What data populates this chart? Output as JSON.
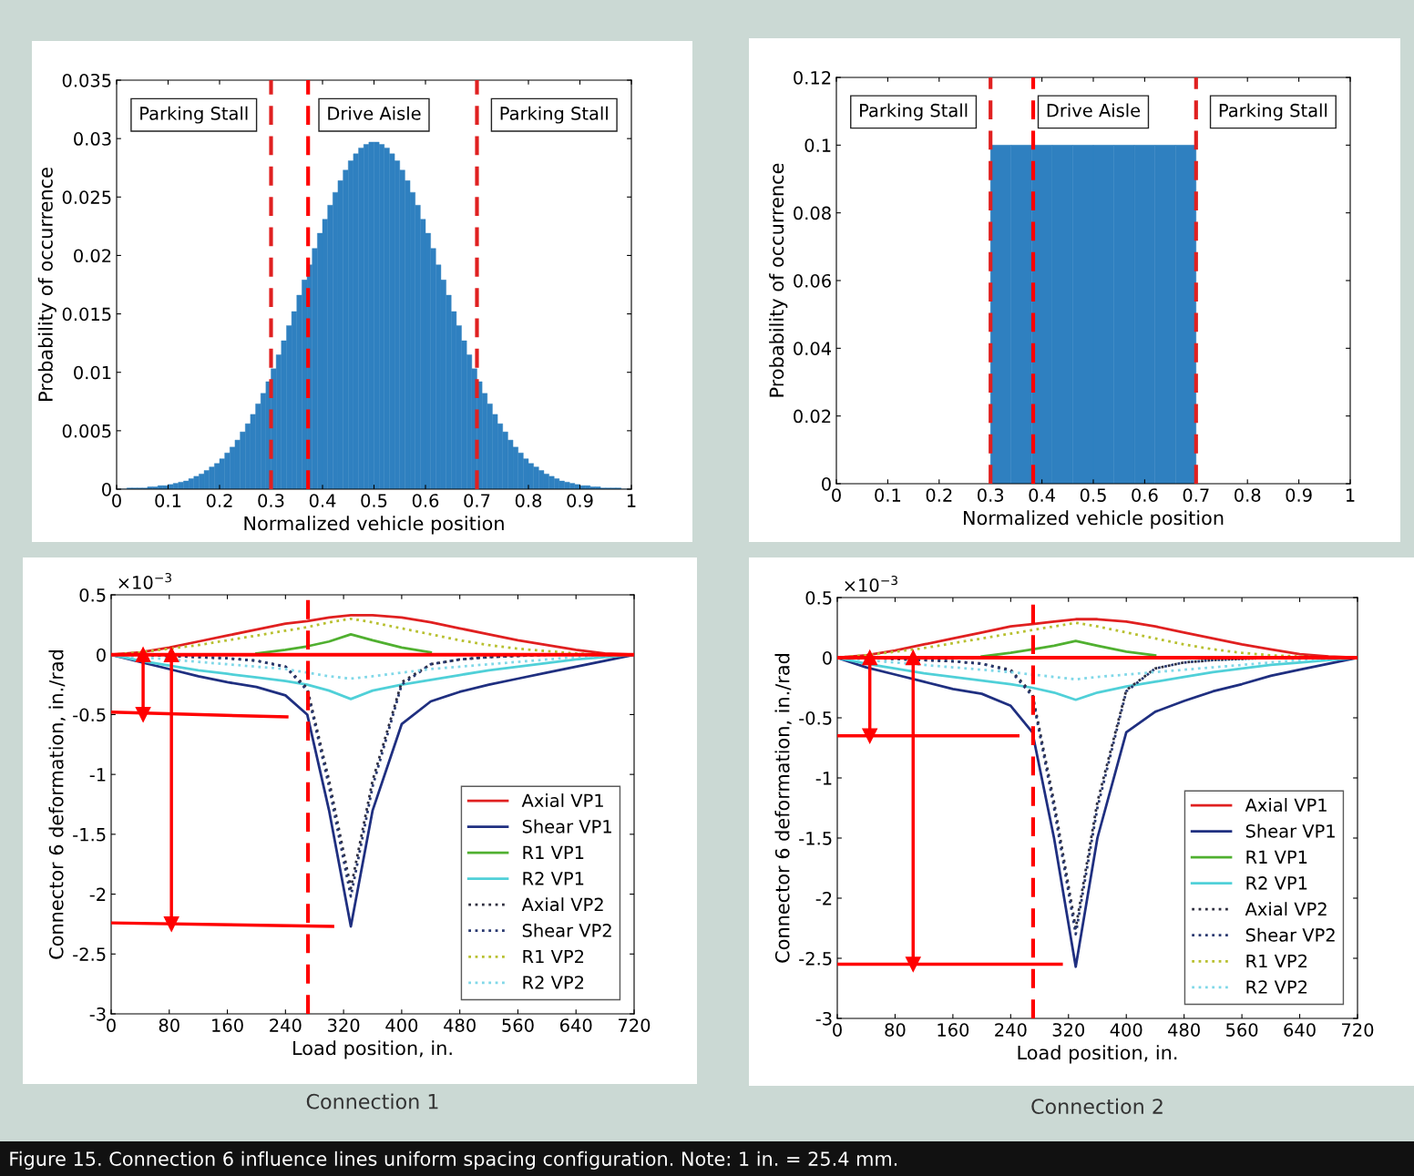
{
  "chart_data": [
    {
      "type": "histogram",
      "xlabel": "Normalized vehicle position",
      "ylabel": "Probability of occurrence",
      "color": "#2f80c0",
      "bins": [
        0,
        0.01,
        0.02,
        0.03,
        0.04,
        0.05,
        0.06,
        0.07,
        0.08,
        0.09,
        0.1,
        0.11,
        0.12,
        0.13,
        0.14,
        0.15,
        0.16,
        0.17,
        0.18,
        0.19,
        0.2,
        0.21,
        0.22,
        0.23,
        0.24,
        0.25,
        0.26,
        0.27,
        0.28,
        0.29,
        0.3,
        0.31,
        0.32,
        0.33,
        0.34,
        0.35,
        0.36,
        0.37,
        0.38,
        0.39,
        0.4,
        0.41,
        0.42,
        0.43,
        0.44,
        0.45,
        0.46,
        0.47,
        0.48,
        0.49,
        0.5,
        0.51,
        0.52,
        0.53,
        0.54,
        0.55,
        0.56,
        0.57,
        0.58,
        0.59,
        0.6,
        0.61,
        0.62,
        0.63,
        0.64,
        0.65,
        0.66,
        0.67,
        0.68,
        0.69,
        0.7,
        0.71,
        0.72,
        0.73,
        0.74,
        0.75,
        0.76,
        0.77,
        0.78,
        0.79,
        0.8,
        0.81,
        0.82,
        0.83,
        0.84,
        0.85,
        0.86,
        0.87,
        0.88,
        0.89,
        0.9,
        0.91,
        0.92,
        0.93,
        0.94,
        0.95,
        0.96,
        0.97,
        0.98,
        0.99,
        1
      ],
      "values": [
        0,
        0,
        0.0001,
        0.0001,
        0.0001,
        0.0001,
        0.0002,
        0.0002,
        0.0003,
        0.0003,
        0.0004,
        0.0005,
        0.0006,
        0.0007,
        0.0009,
        0.0011,
        0.0013,
        0.0016,
        0.0019,
        0.0022,
        0.0026,
        0.0031,
        0.0036,
        0.0042,
        0.0049,
        0.0056,
        0.0064,
        0.0073,
        0.0082,
        0.0092,
        0.0103,
        0.0115,
        0.0127,
        0.014,
        0.0152,
        0.0166,
        0.0179,
        0.0192,
        0.0206,
        0.0219,
        0.0231,
        0.0243,
        0.0254,
        0.0264,
        0.0273,
        0.0281,
        0.0287,
        0.0292,
        0.0295,
        0.0297,
        0.0297,
        0.0295,
        0.0292,
        0.0287,
        0.0281,
        0.0273,
        0.0264,
        0.0254,
        0.0243,
        0.0231,
        0.0219,
        0.0206,
        0.0192,
        0.0179,
        0.0166,
        0.0152,
        0.014,
        0.0127,
        0.0115,
        0.0103,
        0.0092,
        0.0082,
        0.0073,
        0.0064,
        0.0056,
        0.0049,
        0.0042,
        0.0036,
        0.0031,
        0.0026,
        0.0022,
        0.0019,
        0.0016,
        0.0013,
        0.0011,
        0.0009,
        0.0007,
        0.0006,
        0.0005,
        0.0004,
        0.0003,
        0.0003,
        0.0002,
        0.0002,
        0.0001,
        0.0001,
        0.0001,
        0.0001,
        0,
        0
      ],
      "xlim": [
        0,
        1
      ],
      "xticks": [
        0,
        0.1,
        0.2,
        0.3,
        0.4,
        0.5,
        0.6,
        0.7,
        0.8,
        0.9,
        1
      ],
      "ylim": [
        0,
        0.035
      ],
      "yticks": [
        0,
        0.005,
        0.01,
        0.015,
        0.02,
        0.025,
        0.03,
        0.035
      ],
      "ref_lines": [
        {
          "axis": "x",
          "value": 0.3,
          "color": "#e02020",
          "line_style": "dashed"
        },
        {
          "axis": "x",
          "value": 0.7,
          "color": "#e02020",
          "line_style": "dashed"
        },
        {
          "axis": "x",
          "value": 0.372,
          "color": "#ff0000",
          "line_style": "dashed"
        }
      ],
      "annotations": [
        "Parking Stall",
        "Drive Aisle",
        "Parking Stall"
      ]
    },
    {
      "type": "histogram",
      "xlabel": "Normalized vehicle position",
      "ylabel": "Probability of occurrence",
      "color": "#2f80c0",
      "bins": [
        0.3,
        0.34,
        0.38,
        0.42,
        0.46,
        0.5,
        0.54,
        0.58,
        0.62,
        0.66,
        0.7
      ],
      "values": [
        0.1,
        0.1,
        0.1,
        0.1,
        0.1,
        0.1,
        0.1,
        0.1,
        0.1,
        0.1
      ],
      "xlim": [
        0,
        1
      ],
      "xticks": [
        0,
        0.1,
        0.2,
        0.3,
        0.4,
        0.5,
        0.6,
        0.7,
        0.8,
        0.9,
        1
      ],
      "ylim": [
        0,
        0.12
      ],
      "yticks": [
        0,
        0.02,
        0.04,
        0.06,
        0.08,
        0.1,
        0.12
      ],
      "ref_lines": [
        {
          "axis": "x",
          "value": 0.3,
          "color": "#e02020",
          "line_style": "dashed"
        },
        {
          "axis": "x",
          "value": 0.7,
          "color": "#e02020",
          "line_style": "dashed"
        },
        {
          "axis": "x",
          "value": 0.383,
          "color": "#ff0000",
          "line_style": "dashed"
        }
      ],
      "annotations": [
        "Parking Stall",
        "Drive Aisle",
        "Parking Stall"
      ]
    },
    {
      "type": "line",
      "xlabel": "Load position, in.",
      "ylabel": "Connector 6 deformation, in./rad",
      "legend": "bottom right",
      "x": [
        0,
        40,
        80,
        120,
        160,
        200,
        240,
        270,
        300,
        330,
        360,
        400,
        440,
        480,
        520,
        560,
        600,
        640,
        680,
        720
      ],
      "series": [
        {
          "name": "Axial VP1",
          "color": "#e02020",
          "line_style": "solid",
          "values": [
            0,
            0.02,
            0.06,
            0.11,
            0.16,
            0.21,
            0.26,
            0.28,
            0.31,
            0.33,
            0.33,
            0.31,
            0.27,
            0.22,
            0.17,
            0.12,
            0.08,
            0.04,
            0.01,
            0
          ]
        },
        {
          "name": "Shear VP1",
          "color": "#1f2f80",
          "line_style": "solid",
          "values": [
            0,
            -0.06,
            -0.12,
            -0.18,
            -0.23,
            -0.27,
            -0.34,
            -0.5,
            -1.3,
            -2.27,
            -1.3,
            -0.58,
            -0.39,
            -0.31,
            -0.25,
            -0.2,
            -0.15,
            -0.1,
            -0.05,
            0
          ]
        },
        {
          "name": "R1 VP1",
          "color": "#50b030",
          "line_style": "solid",
          "values": [
            null,
            null,
            null,
            null,
            null,
            0.01,
            0.04,
            0.07,
            0.11,
            0.17,
            0.12,
            0.06,
            0.02,
            null,
            null,
            null,
            null,
            null,
            null,
            null
          ]
        },
        {
          "name": "R2 VP1",
          "color": "#50d0d8",
          "line_style": "solid",
          "values": [
            0,
            -0.05,
            -0.09,
            -0.13,
            -0.16,
            -0.19,
            -0.22,
            -0.25,
            -0.3,
            -0.37,
            -0.3,
            -0.25,
            -0.21,
            -0.17,
            -0.13,
            -0.1,
            -0.07,
            -0.04,
            -0.02,
            0
          ]
        },
        {
          "name": "Axial VP2",
          "color": "#303040",
          "line_style": "dotted",
          "values": [
            0,
            0,
            -0.01,
            -0.02,
            -0.03,
            -0.05,
            -0.1,
            -0.28,
            -1.05,
            -1.95,
            -1.05,
            -0.23,
            -0.08,
            -0.04,
            -0.02,
            -0.01,
            0,
            0,
            0,
            0
          ]
        },
        {
          "name": "Shear VP2",
          "color": "#283870",
          "line_style": "dotted",
          "values": [
            0,
            0,
            -0.01,
            -0.02,
            -0.03,
            -0.05,
            -0.1,
            -0.3,
            -1.1,
            -2.02,
            -1.1,
            -0.25,
            -0.08,
            -0.04,
            -0.02,
            -0.01,
            0,
            0,
            0,
            0
          ]
        },
        {
          "name": "R1 VP2",
          "color": "#b8c030",
          "line_style": "dotted",
          "values": [
            0,
            0.02,
            0.05,
            0.08,
            0.12,
            0.16,
            0.2,
            0.23,
            0.27,
            0.3,
            0.27,
            0.22,
            0.17,
            0.12,
            0.08,
            0.05,
            0.03,
            0.01,
            0,
            0
          ]
        },
        {
          "name": "R2 VP2",
          "color": "#80d8e8",
          "line_style": "dotted",
          "values": [
            0,
            -0.02,
            -0.04,
            -0.06,
            -0.08,
            -0.1,
            -0.12,
            -0.15,
            -0.18,
            -0.2,
            -0.18,
            -0.15,
            -0.12,
            -0.1,
            -0.08,
            -0.06,
            -0.04,
            -0.02,
            -0.01,
            0
          ]
        },
        {
          "color": "#ff0000",
          "line_style": "solid",
          "x": [
            0,
            242
          ],
          "values": [
            -0.48,
            -0.52
          ]
        },
        {
          "color": "#ff0000",
          "line_style": "solid",
          "x": [
            0,
            305
          ],
          "values": [
            -2.24,
            -2.27
          ]
        },
        {
          "color": "#ff0000",
          "line_style": "solid",
          "marker": "triangle",
          "x": [
            44,
            44
          ],
          "values": [
            0,
            -0.5
          ]
        },
        {
          "color": "#ff0000",
          "line_style": "solid",
          "marker": "triangle",
          "x": [
            83,
            83
          ],
          "values": [
            0,
            -2.25
          ]
        }
      ],
      "xlim": [
        0,
        720
      ],
      "xticks": [
        0,
        80,
        160,
        240,
        320,
        400,
        480,
        560,
        640,
        720
      ],
      "ylim": [
        -3,
        0.5
      ],
      "yticks": [
        -3,
        -2.5,
        -2,
        -1.5,
        -1,
        -0.5,
        0,
        0.5
      ],
      "ref_lines": [
        {
          "axis": "y",
          "value": 0,
          "color": "#ff0000",
          "line_style": "solid"
        },
        {
          "axis": "x",
          "value": 271,
          "color": "#ff0000",
          "line_style": "dashed"
        }
      ],
      "annotations": [
        "×10$^{−3}$",
        "Connection 1"
      ]
    },
    {
      "type": "line",
      "xlabel": "Load position, in.",
      "ylabel": "Connector 6 deformation, in./rad",
      "legend": "bottom right",
      "x": [
        0,
        40,
        80,
        120,
        160,
        200,
        240,
        270,
        300,
        330,
        360,
        400,
        440,
        480,
        520,
        560,
        600,
        640,
        680,
        720
      ],
      "series": [
        {
          "name": "Axial VP1",
          "color": "#e02020",
          "line_style": "solid",
          "values": [
            0,
            0.02,
            0.06,
            0.11,
            0.16,
            0.21,
            0.26,
            0.28,
            0.3,
            0.32,
            0.32,
            0.3,
            0.26,
            0.21,
            0.16,
            0.11,
            0.07,
            0.03,
            0.01,
            0
          ]
        },
        {
          "name": "Shear VP1",
          "color": "#1f2f80",
          "line_style": "solid",
          "values": [
            0,
            -0.08,
            -0.14,
            -0.2,
            -0.26,
            -0.3,
            -0.4,
            -0.62,
            -1.5,
            -2.57,
            -1.5,
            -0.62,
            -0.45,
            -0.36,
            -0.28,
            -0.22,
            -0.15,
            -0.1,
            -0.05,
            0
          ]
        },
        {
          "name": "R1 VP1",
          "color": "#50b030",
          "line_style": "solid",
          "values": [
            null,
            null,
            null,
            null,
            null,
            0.01,
            0.04,
            0.07,
            0.1,
            0.14,
            0.1,
            0.05,
            0.02,
            null,
            null,
            null,
            null,
            null,
            null,
            null
          ]
        },
        {
          "name": "R2 VP1",
          "color": "#50d0d8",
          "line_style": "solid",
          "values": [
            0,
            -0.05,
            -0.09,
            -0.13,
            -0.16,
            -0.19,
            -0.22,
            -0.25,
            -0.29,
            -0.35,
            -0.29,
            -0.24,
            -0.2,
            -0.16,
            -0.12,
            -0.09,
            -0.06,
            -0.04,
            -0.02,
            0
          ]
        },
        {
          "name": "Axial VP2",
          "color": "#303040",
          "line_style": "dotted",
          "values": [
            0,
            0,
            -0.01,
            -0.02,
            -0.03,
            -0.05,
            -0.1,
            -0.3,
            -1.2,
            -2.25,
            -1.2,
            -0.27,
            -0.09,
            -0.04,
            -0.02,
            -0.01,
            0,
            0,
            0,
            0
          ]
        },
        {
          "name": "Shear VP2",
          "color": "#283870",
          "line_style": "dotted",
          "values": [
            0,
            0,
            -0.01,
            -0.02,
            -0.03,
            -0.05,
            -0.11,
            -0.32,
            -1.25,
            -2.3,
            -1.25,
            -0.28,
            -0.09,
            -0.04,
            -0.02,
            -0.01,
            0,
            0,
            0,
            0
          ]
        },
        {
          "name": "R1 VP2",
          "color": "#b8c030",
          "line_style": "dotted",
          "values": [
            0,
            0.02,
            0.05,
            0.08,
            0.12,
            0.16,
            0.2,
            0.23,
            0.26,
            0.29,
            0.26,
            0.21,
            0.16,
            0.11,
            0.07,
            0.04,
            0.02,
            0.01,
            0,
            0
          ]
        },
        {
          "name": "R2 VP2",
          "color": "#80d8e8",
          "line_style": "dotted",
          "values": [
            0,
            -0.02,
            -0.04,
            -0.06,
            -0.08,
            -0.1,
            -0.12,
            -0.14,
            -0.16,
            -0.18,
            -0.16,
            -0.14,
            -0.12,
            -0.1,
            -0.08,
            -0.06,
            -0.04,
            -0.02,
            -0.01,
            0
          ]
        },
        {
          "color": "#ff0000",
          "line_style": "solid",
          "x": [
            0,
            250
          ],
          "values": [
            -0.65,
            -0.65
          ]
        },
        {
          "color": "#ff0000",
          "line_style": "solid",
          "x": [
            0,
            310
          ],
          "values": [
            -2.55,
            -2.55
          ]
        },
        {
          "color": "#ff0000",
          "line_style": "solid",
          "marker": "triangle",
          "x": [
            45,
            45
          ],
          "values": [
            0,
            -0.65
          ]
        },
        {
          "color": "#ff0000",
          "line_style": "solid",
          "marker": "triangle",
          "x": [
            105,
            105
          ],
          "values": [
            0,
            -2.55
          ]
        }
      ],
      "xlim": [
        0,
        720
      ],
      "xticks": [
        0,
        80,
        160,
        240,
        320,
        400,
        480,
        560,
        640,
        720
      ],
      "ylim": [
        -3,
        0.5
      ],
      "yticks": [
        -3,
        -2.5,
        -2,
        -1.5,
        -1,
        -0.5,
        0,
        0.5
      ],
      "ref_lines": [
        {
          "axis": "y",
          "value": 0,
          "color": "#ff0000",
          "line_style": "solid"
        },
        {
          "axis": "x",
          "value": 271,
          "color": "#ff0000",
          "line_style": "dashed"
        }
      ],
      "annotations": [
        "×10$^{−3}$",
        "Connection 2"
      ]
    },
    {
      "type": "other",
      "annotations": [
        "Figure 15. Connection 6 influence lines uniform spacing configuration. Note: 1 in. = 25.4 mm."
      ]
    }
  ]
}
